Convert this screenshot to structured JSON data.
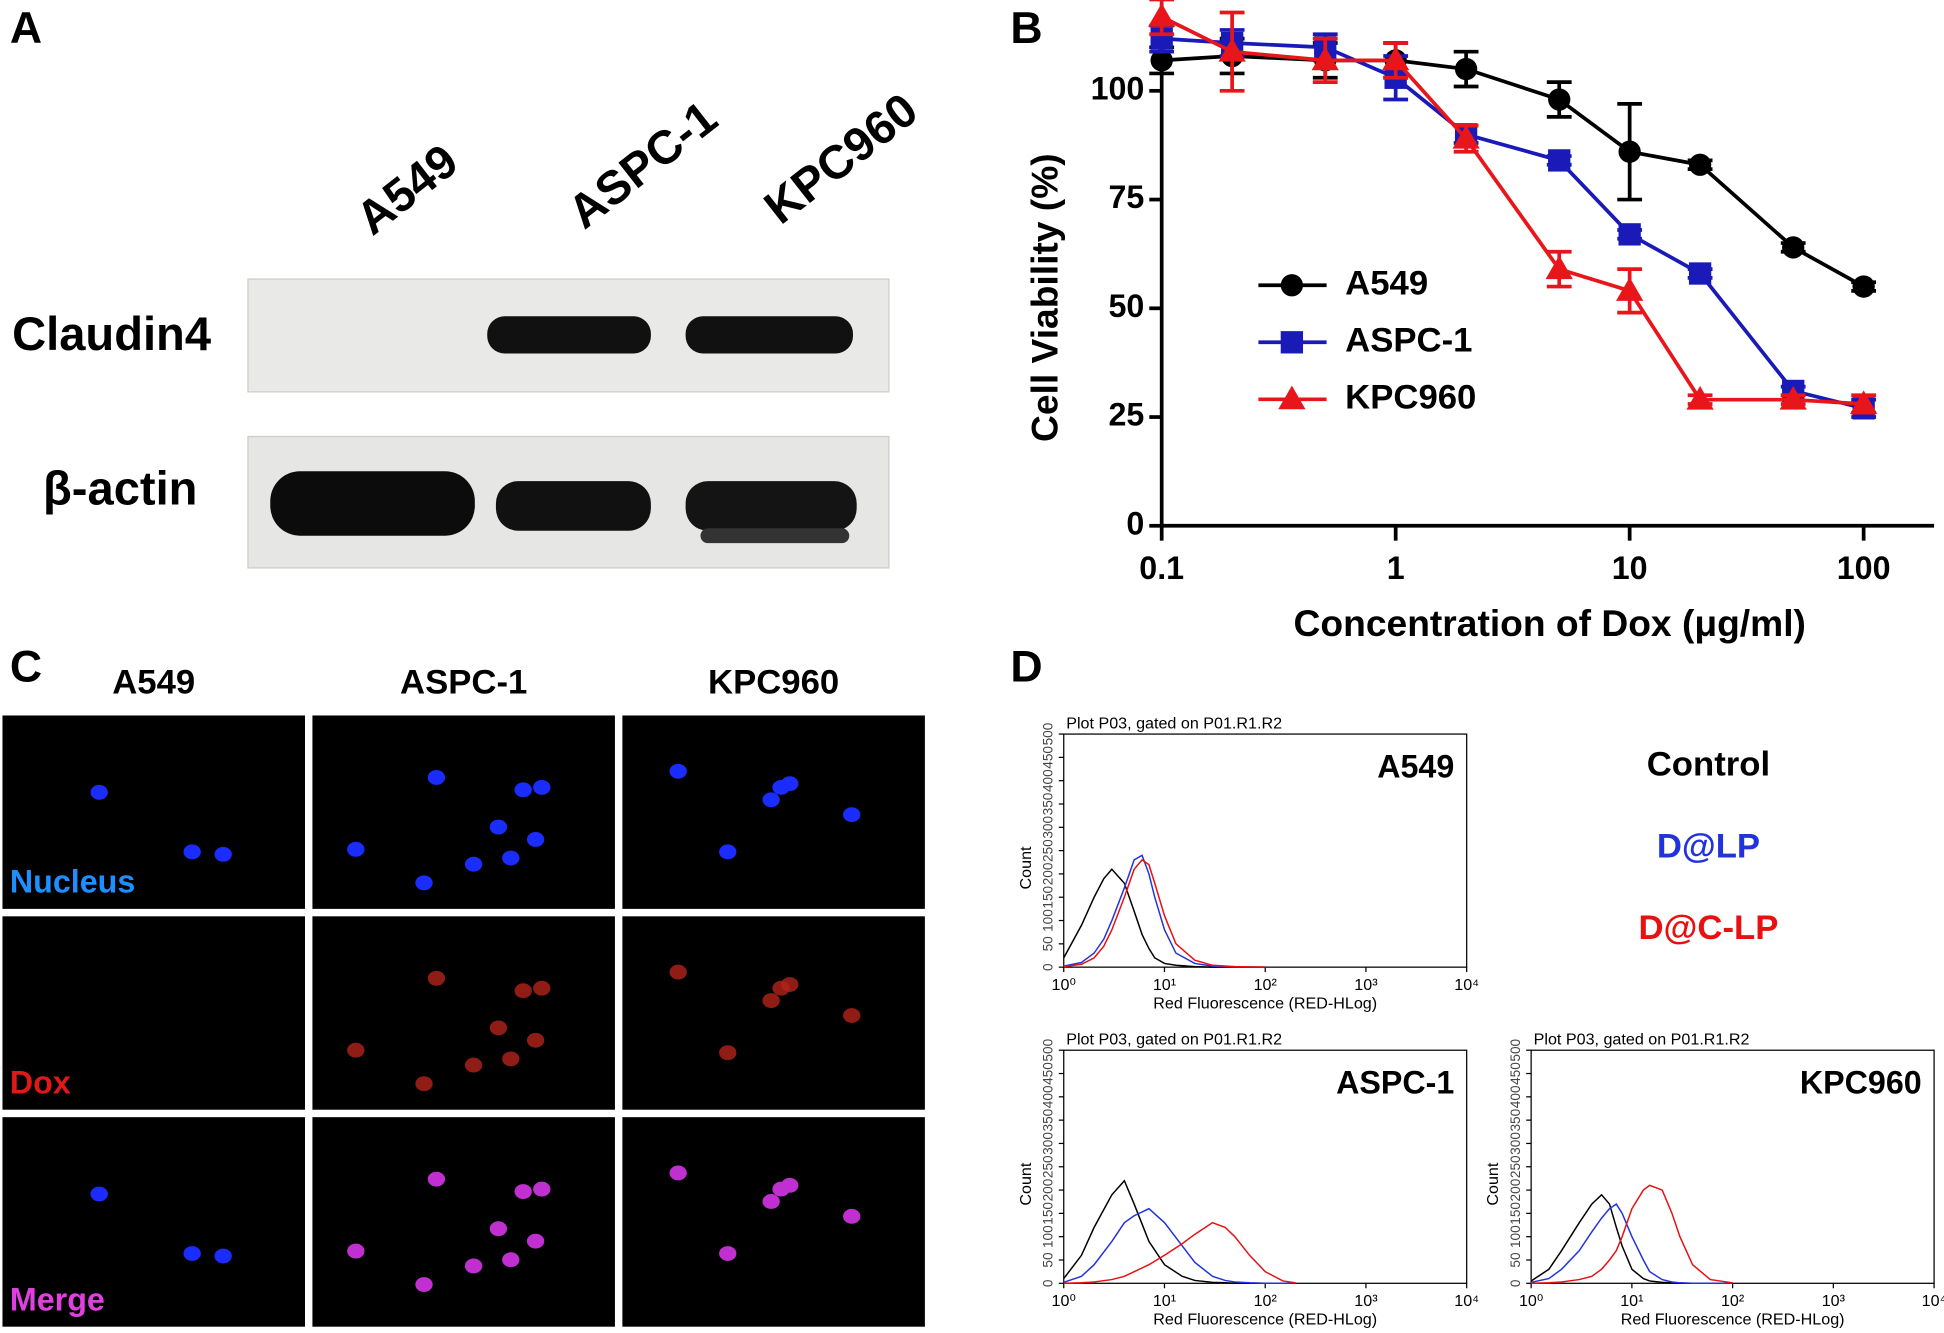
{
  "panel_labels": [
    "A",
    "B",
    "C",
    "D"
  ],
  "western_blot": {
    "lanes": [
      "A549",
      "ASPC-1",
      "KPC960"
    ],
    "rows": [
      "Claudin4",
      "β-actin"
    ]
  },
  "microscopy": {
    "columns": [
      "A549",
      "ASPC-1",
      "KPC960"
    ],
    "rows": [
      "Nucleus",
      "Dox",
      "Merge"
    ]
  },
  "chart_data": [
    {
      "type": "line",
      "xscale": "log",
      "ylabel": "Cell Viability (%)",
      "xlabel": "Concentration of Dox (μg/ml)",
      "x": [
        0.1,
        0.2,
        0.5,
        1,
        2,
        5,
        10,
        20,
        50,
        100
      ],
      "xlim": [
        0.1,
        200
      ],
      "xticks": [
        0.1,
        1,
        10,
        100
      ],
      "ylim": [
        0,
        120
      ],
      "yticks": [
        0,
        25,
        50,
        75,
        100
      ],
      "legend": "center-left",
      "series": [
        {
          "name": "A549",
          "color": "#000000",
          "marker": "circle",
          "values": [
            107,
            108,
            107,
            107,
            105,
            98,
            86,
            83,
            64,
            55
          ],
          "errors": [
            3,
            4,
            4,
            4,
            4,
            4,
            11,
            1,
            1,
            1
          ]
        },
        {
          "name": "ASPC-1",
          "color": "#1a1ab8",
          "marker": "square",
          "values": [
            112,
            111,
            110,
            103,
            90,
            84,
            67,
            58,
            31,
            27
          ],
          "errors": [
            3,
            3,
            3,
            5,
            2,
            1,
            1,
            1,
            1,
            2
          ]
        },
        {
          "name": "KPC960",
          "color": "#e8161b",
          "marker": "triangle",
          "values": [
            117,
            109,
            107,
            107,
            89,
            59,
            54,
            29,
            29,
            28
          ],
          "errors": [
            4,
            9,
            5,
            4,
            3,
            4,
            5,
            1,
            1,
            2
          ]
        }
      ]
    },
    {
      "type": "line",
      "xscale": "log",
      "title": "Plot P03, gated on P01.R1.R2",
      "annotation": "A549",
      "ylabel": "Count",
      "xlabel": "Red Fluorescence (RED-HLog)",
      "x": [
        1,
        1.5,
        2,
        2.5,
        3,
        4,
        5,
        6,
        7,
        8,
        10,
        13,
        20,
        30,
        50,
        100
      ],
      "xlim": [
        1,
        10000
      ],
      "xticks": [
        {
          "value": 1,
          "label": "10⁰"
        },
        {
          "value": 10,
          "label": "10¹"
        },
        {
          "value": 100,
          "label": "10²"
        },
        {
          "value": 1000,
          "label": "10³"
        },
        {
          "value": 10000,
          "label": "10⁴"
        }
      ],
      "ylim": [
        0,
        500
      ],
      "yticks": [
        0,
        50,
        100,
        150,
        200,
        250,
        300,
        350,
        400,
        450,
        500
      ],
      "series": [
        {
          "name": "Control",
          "color": "#000000",
          "values": [
            20,
            90,
            150,
            190,
            210,
            180,
            120,
            70,
            40,
            20,
            8,
            4,
            1,
            0,
            0,
            0
          ]
        },
        {
          "name": "D@LP",
          "color": "#2233dd",
          "values": [
            2,
            10,
            30,
            60,
            100,
            170,
            230,
            240,
            200,
            150,
            80,
            30,
            8,
            2,
            0,
            0
          ]
        },
        {
          "name": "D@C-LP",
          "color": "#e81010",
          "values": [
            1,
            6,
            20,
            45,
            80,
            150,
            210,
            230,
            220,
            180,
            110,
            50,
            15,
            4,
            1,
            0
          ]
        }
      ]
    },
    {
      "type": "line",
      "xscale": "log",
      "title": "Plot P03, gated on P01.R1.R2",
      "annotation": "ASPC-1",
      "ylabel": "Count",
      "xlabel": "Red Fluorescence (RED-HLog)",
      "x": [
        1,
        1.5,
        2,
        3,
        4,
        5,
        7,
        10,
        15,
        20,
        30,
        40,
        50,
        70,
        100,
        150,
        200
      ],
      "xlim": [
        1,
        10000
      ],
      "xticks": [
        {
          "value": 1,
          "label": "10⁰"
        },
        {
          "value": 10,
          "label": "10¹"
        },
        {
          "value": 100,
          "label": "10²"
        },
        {
          "value": 1000,
          "label": "10³"
        },
        {
          "value": 10000,
          "label": "10⁴"
        }
      ],
      "ylim": [
        0,
        500
      ],
      "yticks": [
        0,
        50,
        100,
        150,
        200,
        250,
        300,
        350,
        400,
        450,
        500
      ],
      "series": [
        {
          "color": "#000000",
          "values": [
            10,
            60,
            120,
            190,
            220,
            170,
            90,
            40,
            15,
            6,
            2,
            1,
            0,
            0,
            0,
            0,
            0
          ]
        },
        {
          "color": "#2233dd",
          "values": [
            2,
            15,
            40,
            90,
            130,
            145,
            160,
            130,
            80,
            45,
            15,
            6,
            3,
            1,
            0,
            0,
            0
          ]
        },
        {
          "color": "#e81010",
          "values": [
            0,
            1,
            3,
            8,
            15,
            25,
            40,
            60,
            85,
            105,
            130,
            120,
            100,
            60,
            25,
            5,
            1
          ]
        }
      ]
    },
    {
      "type": "line",
      "xscale": "log",
      "title": "Plot P03, gated on P01.R1.R2",
      "annotation": "KPC960",
      "ylabel": "Count",
      "xlabel": "Red Fluorescence (RED-HLog)",
      "x": [
        1,
        1.5,
        2,
        3,
        4,
        5,
        6,
        7,
        8,
        10,
        13,
        15,
        20,
        25,
        30,
        40,
        60,
        100
      ],
      "xlim": [
        1,
        10000
      ],
      "xticks": [
        {
          "value": 1,
          "label": "10⁰"
        },
        {
          "value": 10,
          "label": "10¹"
        },
        {
          "value": 100,
          "label": "10²"
        },
        {
          "value": 1000,
          "label": "10³"
        },
        {
          "value": 10000,
          "label": "10⁴"
        }
      ],
      "ylim": [
        0,
        500
      ],
      "yticks": [
        0,
        50,
        100,
        150,
        200,
        250,
        300,
        350,
        400,
        450,
        500
      ],
      "series": [
        {
          "color": "#000000",
          "values": [
            5,
            30,
            70,
            130,
            170,
            190,
            170,
            120,
            80,
            30,
            10,
            5,
            2,
            1,
            0,
            0,
            0,
            0
          ]
        },
        {
          "color": "#2233dd",
          "values": [
            2,
            10,
            30,
            70,
            110,
            140,
            160,
            170,
            150,
            100,
            50,
            25,
            8,
            3,
            1,
            0,
            0,
            0
          ]
        },
        {
          "color": "#e81010",
          "values": [
            0,
            1,
            3,
            8,
            15,
            30,
            50,
            70,
            100,
            160,
            200,
            210,
            200,
            150,
            100,
            40,
            8,
            1
          ]
        }
      ]
    }
  ]
}
